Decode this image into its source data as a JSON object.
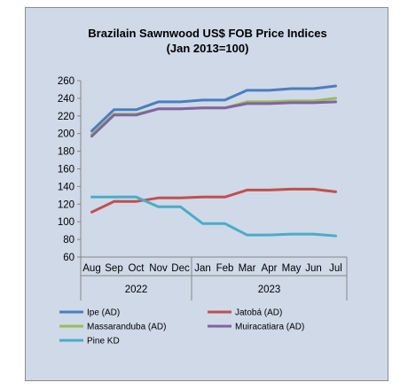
{
  "chart_data": {
    "type": "line",
    "title_lines": [
      "Brazilain Sawnwood US$ FOB Price Indices",
      "(Jan 2013=100)"
    ],
    "categories": [
      "Aug",
      "Sep",
      "Oct",
      "Nov",
      "Dec",
      "Jan",
      "Feb",
      "Mar",
      "Apr",
      "May",
      "Jun",
      "Jul"
    ],
    "year_groups": [
      {
        "label": "2022",
        "count": 5
      },
      {
        "label": "2023",
        "count": 7
      }
    ],
    "ylim": [
      60,
      260
    ],
    "yticks": [
      60,
      80,
      100,
      120,
      140,
      160,
      180,
      200,
      220,
      240,
      260
    ],
    "grid": false,
    "legend_position": "bottom",
    "series": [
      {
        "name": "Ipe (AD)",
        "color": "#4a7ebf",
        "values": [
          203,
          227,
          227,
          236,
          236,
          238,
          238,
          249,
          249,
          251,
          251,
          254
        ]
      },
      {
        "name": "Jatobá (AD)",
        "color": "#c0504d",
        "values": [
          111,
          123,
          123,
          127,
          127,
          128,
          128,
          136,
          136,
          137,
          137,
          134
        ]
      },
      {
        "name": "Massaranduba (AD)",
        "color": "#9bbb59",
        "values": [
          199,
          222,
          222,
          228,
          228,
          229,
          229,
          236,
          236,
          237,
          237,
          240
        ]
      },
      {
        "name": "Muiracatiara (AD)",
        "color": "#8064a2",
        "values": [
          197,
          221,
          221,
          228,
          228,
          229,
          229,
          234,
          234,
          235,
          235,
          236
        ]
      },
      {
        "name": "Pine KD",
        "color": "#4bacc6",
        "values": [
          128,
          128,
          128,
          117,
          117,
          98,
          98,
          85,
          85,
          86,
          86,
          84
        ]
      }
    ]
  }
}
